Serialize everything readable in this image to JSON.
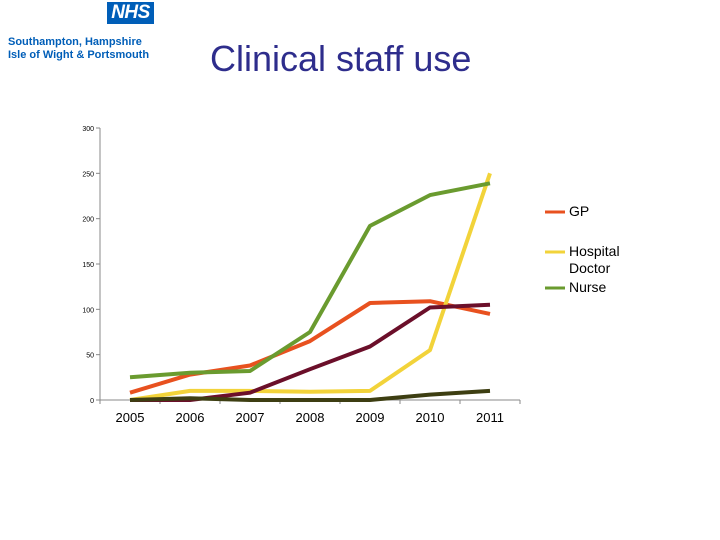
{
  "header": {
    "logo_text": "NHS",
    "org_line_1": "Southampton, Hampshire",
    "org_line_2": "Isle of Wight & Portsmouth",
    "title": "Clinical staff use"
  },
  "colors": {
    "nhs_blue": "#005eb8",
    "title": "#2e2d8c"
  },
  "chart_data": {
    "type": "line",
    "categories": [
      "2005",
      "2006",
      "2007",
      "2008",
      "2009",
      "2010",
      "2011"
    ],
    "ylim": [
      0,
      300
    ],
    "yticks": [
      "0",
      "50",
      "100",
      "150",
      "200",
      "250",
      "300"
    ],
    "grid": false,
    "legend_position": "right",
    "series": [
      {
        "name": "GP",
        "color": "#e8511f",
        "values": [
          8,
          28,
          38,
          65,
          107,
          109,
          95
        ]
      },
      {
        "name": "Hospital Doctor",
        "color": "#f2d33a",
        "values": [
          0,
          10,
          10,
          9,
          10,
          55,
          250
        ]
      },
      {
        "name": "Nurse",
        "color": "#6a9b2f",
        "values": [
          25,
          30,
          32,
          75,
          192,
          226,
          239
        ]
      },
      {
        "name": "",
        "color": "#6b0f2a",
        "values": [
          0,
          0,
          8,
          34,
          59,
          102,
          105
        ]
      },
      {
        "name": "",
        "color": "#3d3e12",
        "values": [
          0,
          2,
          0,
          0,
          0,
          6,
          10
        ]
      }
    ]
  }
}
